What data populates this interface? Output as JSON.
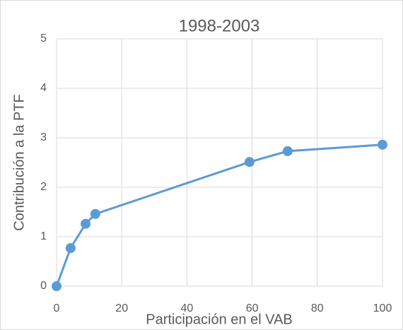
{
  "chart_data": {
    "type": "line",
    "title": "1998-2003",
    "x_label": "Participación en el VAB",
    "y_label": "Contribución a la PTF",
    "x": [
      0,
      4.3,
      8.9,
      11.9,
      59.2,
      70.9,
      100
    ],
    "series": [
      {
        "name": "Contribución a la PTF",
        "color": "#5b9bd5",
        "values": [
          0,
          0.77,
          1.26,
          1.46,
          2.51,
          2.73,
          2.86
        ]
      }
    ],
    "xlim": [
      0,
      100
    ],
    "xticks": [
      0,
      20,
      40,
      60,
      80,
      100
    ],
    "ylim": [
      0,
      5
    ],
    "yticks": [
      0,
      1,
      2,
      3,
      4,
      5
    ],
    "grid": true
  }
}
